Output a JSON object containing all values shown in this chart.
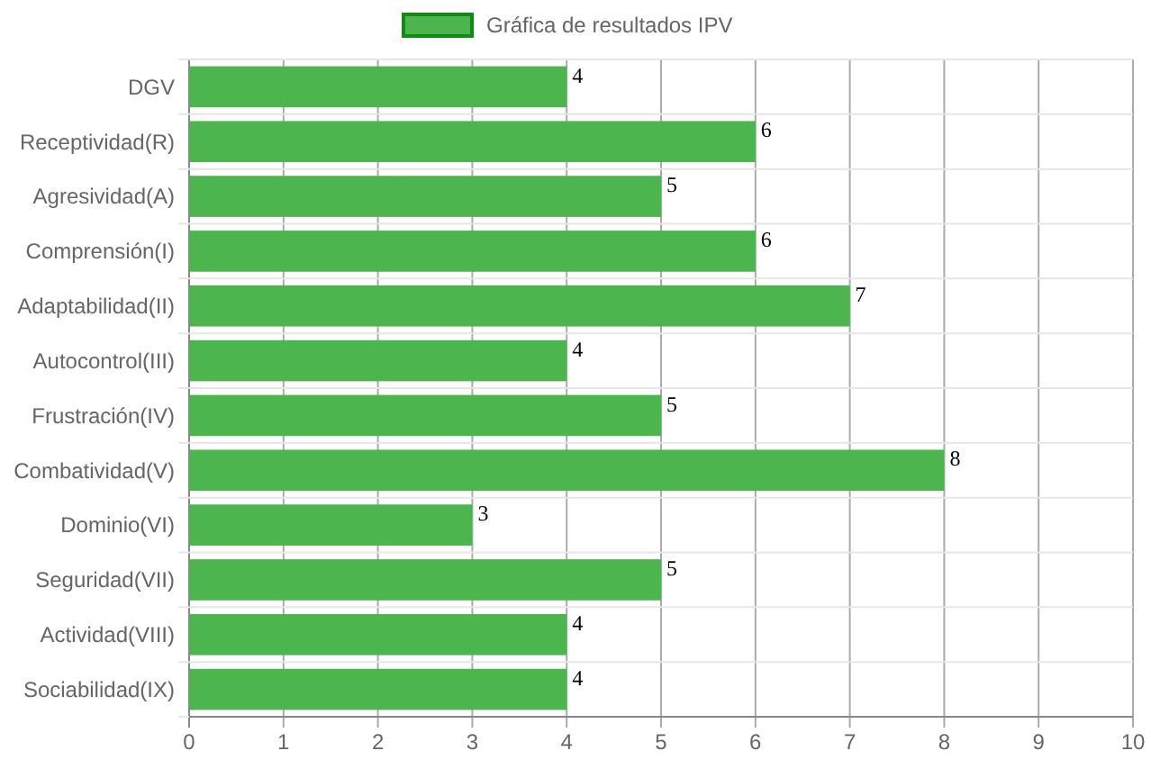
{
  "chart_data": {
    "type": "bar",
    "orientation": "horizontal",
    "categories": [
      "DGV",
      "Receptividad(R)",
      "Agresividad(A)",
      "Comprensión(I)",
      "Adaptabilidad(II)",
      "Autocontrol(III)",
      "Frustración(IV)",
      "Combatividad(V)",
      "Dominio(VI)",
      "Seguridad(VII)",
      "Actividad(VIII)",
      "Sociabilidad(IX)"
    ],
    "series": [
      {
        "name": "Gráfica de resultados IPV",
        "color": "#4db54d",
        "values": [
          4,
          6,
          5,
          6,
          7,
          4,
          5,
          8,
          3,
          5,
          4,
          4
        ]
      }
    ],
    "xlim": [
      0,
      10
    ],
    "xticks": [
      0,
      1,
      2,
      3,
      4,
      5,
      6,
      7,
      8,
      9,
      10
    ],
    "grid": true,
    "legend": "top",
    "data_labels": true
  }
}
